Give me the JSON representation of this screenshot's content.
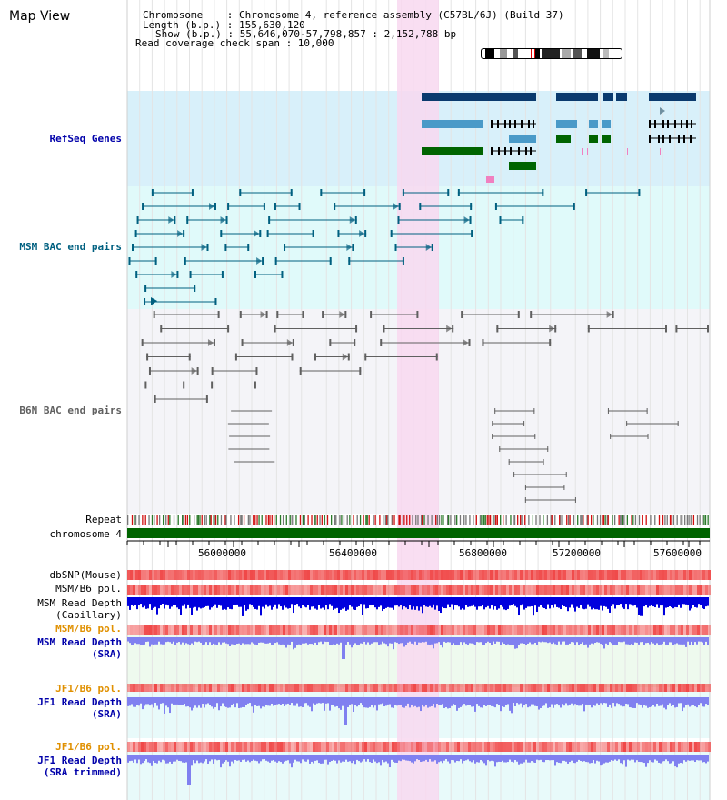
{
  "view": {
    "title": "Map View",
    "header": {
      "chromosome": "Chromosome    : Chromosome 4, reference assembly (C57BL/6J) (Build 37)",
      "length": "Length (b.p.) : 155,630,120",
      "show": "Show (b.p.) : 55,646,070-57,798,857 : 2,152,788 bp",
      "span": "Read coverage check span : 10,000"
    }
  },
  "tracks": {
    "refseq": "RefSeq Genes",
    "msm_bac": "MSM BAC end pairs",
    "b6n_bac": "B6N BAC end pairs",
    "repeat": "Repeat",
    "chromosome": "chromosome 4",
    "dbsnp": "dbSNP(Mouse)",
    "msm_b6_pol_1": "MSM/B6 pol.",
    "msm_depth_cap_1": "MSM Read Depth",
    "msm_depth_cap_2": "(Capillary)",
    "msm_b6_pol_2": "MSM/B6 pol.",
    "msm_depth_sra_1": "MSM Read Depth",
    "msm_depth_sra_2": "(SRA)",
    "jf1_b6_pol_1": "JF1/B6 pol.",
    "jf1_depth_sra_1": "JF1 Read Depth",
    "jf1_depth_sra_2": "(SRA)",
    "jf1_b6_pol_2": "JF1/B6 pol.",
    "jf1_depth_trim_1": "JF1 Read Depth",
    "jf1_depth_trim_2": "(SRA trimmed)"
  },
  "ruler": {
    "ticks": [
      "56000000",
      "56400000",
      "56800000",
      "57200000",
      "57600000"
    ]
  },
  "colors": {
    "refseq_bg": "#d8f0fa",
    "msm_bg": "#e0fafa",
    "b6n_bg": "#f4f4f8",
    "highlight": "#f8d8f0",
    "msm_accent": "#006080",
    "b6n_accent": "#606060",
    "gene_navy": "#0a3a6e",
    "gene_blue": "#4a9ac8",
    "gene_green": "#006400",
    "depth_blue": "#0000dd",
    "depth_light": "#8080f0",
    "pol_red": "#f06060"
  }
}
